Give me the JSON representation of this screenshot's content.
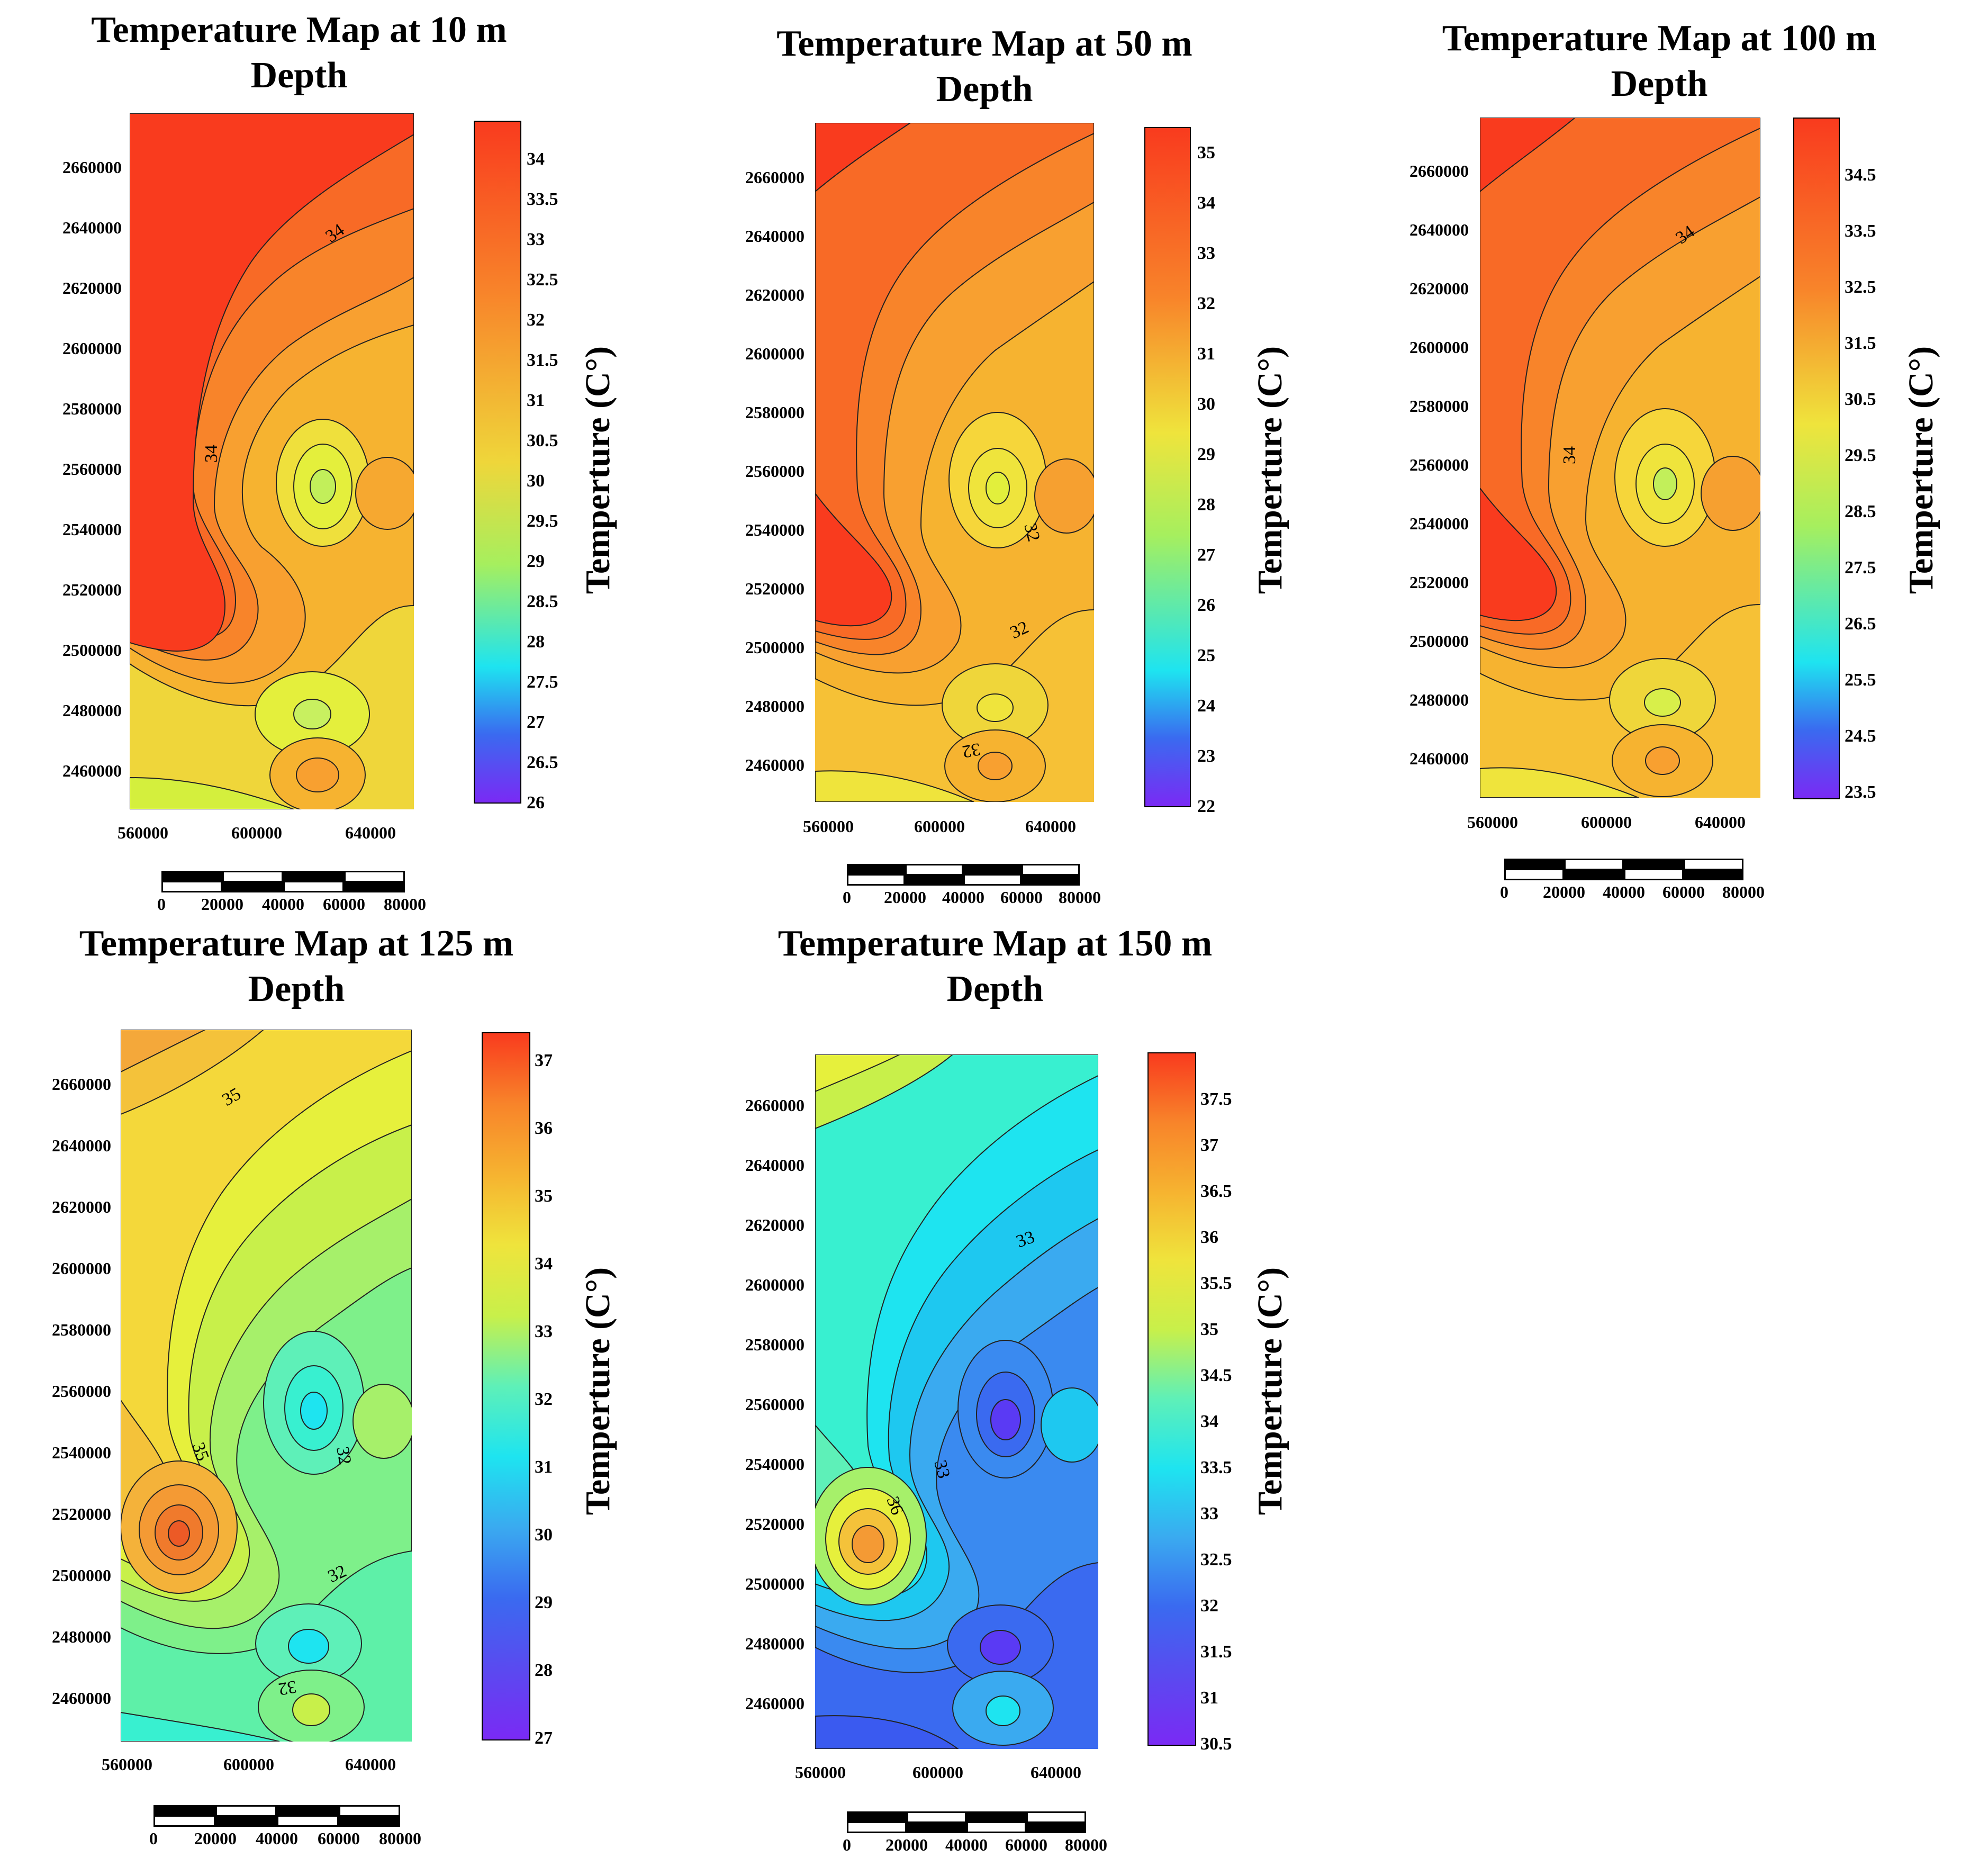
{
  "panels": [
    {
      "id": "p10",
      "title_line1": "Temperature Map at 10 m",
      "title_line2": "Depth",
      "y_ticks": [
        "2660000",
        "2640000",
        "2620000",
        "2600000",
        "2580000",
        "2560000",
        "2540000",
        "2520000",
        "2500000",
        "2480000",
        "2460000"
      ],
      "x_ticks": [
        "560000",
        "600000",
        "640000"
      ],
      "colorbar_title": "Temperture (C°)",
      "colorbar_labels": [
        "34",
        "33.5",
        "33",
        "32.5",
        "32",
        "31.5",
        "31",
        "30.5",
        "30",
        "29.5",
        "29",
        "28.5",
        "28",
        "27.5",
        "27",
        "26.5",
        "26"
      ],
      "contour_labels": [
        "34",
        "34"
      ],
      "scale_labels": [
        "0",
        "20000",
        "40000",
        "60000",
        "80000"
      ],
      "colors": {
        "hot": "#f93b1e",
        "warm": "#f8842a",
        "mid": "#f6b330",
        "cool": "#efd63a",
        "cold": "#d4ef3d"
      }
    },
    {
      "id": "p50",
      "title_line1": "Temperature Map at 50 m",
      "title_line2": "Depth",
      "y_ticks": [
        "2660000",
        "2640000",
        "2620000",
        "2600000",
        "2580000",
        "2560000",
        "2540000",
        "2520000",
        "2500000",
        "2480000",
        "2460000"
      ],
      "x_ticks": [
        "560000",
        "600000",
        "640000"
      ],
      "colorbar_title": "Temperture (C°)",
      "colorbar_labels": [
        "35",
        "34",
        "33",
        "32",
        "31",
        "30",
        "29",
        "28",
        "27",
        "26",
        "25",
        "24",
        "23",
        "22"
      ],
      "contour_labels": [
        "32",
        "32",
        "32"
      ],
      "scale_labels": [
        "0",
        "20000",
        "40000",
        "60000",
        "80000"
      ],
      "colors": {
        "hot": "#f93b1e",
        "warm": "#f8842a",
        "mid": "#f6b330",
        "cool": "#efd63a",
        "cold": "#d4ef3d"
      }
    },
    {
      "id": "p100",
      "title_line1": "Temperature Map at 100 m",
      "title_line2": "Depth",
      "y_ticks": [
        "2660000",
        "2640000",
        "2620000",
        "2600000",
        "2580000",
        "2560000",
        "2540000",
        "2520000",
        "2500000",
        "2480000",
        "2460000"
      ],
      "x_ticks": [
        "560000",
        "600000",
        "640000"
      ],
      "colorbar_title": "Temperture (C°)",
      "colorbar_labels": [
        "34.5",
        "33.5",
        "32.5",
        "31.5",
        "30.5",
        "29.5",
        "28.5",
        "27.5",
        "26.5",
        "25.5",
        "24.5",
        "23.5"
      ],
      "contour_labels": [
        "34",
        "34"
      ],
      "scale_labels": [
        "0",
        "20000",
        "40000",
        "60000",
        "80000"
      ],
      "colors": {
        "hot": "#f93b1e",
        "warm": "#f8842a",
        "mid": "#f6b330",
        "cool": "#efd63a",
        "cold": "#d4ef3d"
      }
    },
    {
      "id": "p125",
      "title_line1": "Temperature Map at 125 m",
      "title_line2": "Depth",
      "y_ticks": [
        "2660000",
        "2640000",
        "2620000",
        "2600000",
        "2580000",
        "2560000",
        "2540000",
        "2520000",
        "2500000",
        "2480000",
        "2460000"
      ],
      "x_ticks": [
        "560000",
        "600000",
        "640000"
      ],
      "colorbar_title": "Temperture (C°)",
      "colorbar_labels": [
        "37",
        "36",
        "35",
        "34",
        "33",
        "32",
        "31",
        "30",
        "29",
        "28",
        "27"
      ],
      "contour_labels": [
        "35",
        "35",
        "32",
        "32",
        "32"
      ],
      "scale_labels": [
        "0",
        "20000",
        "40000",
        "60000",
        "80000"
      ],
      "colors": {
        "hot": "#f08a2a",
        "warm": "#f4c23a",
        "mid": "#e6f03c",
        "cool": "#7ef08a",
        "cold": "#38f0d0"
      }
    },
    {
      "id": "p150",
      "title_line1": "Temperature Map at 150 m",
      "title_line2": "Depth",
      "y_ticks": [
        "2660000",
        "2640000",
        "2620000",
        "2600000",
        "2580000",
        "2560000",
        "2540000",
        "2520000",
        "2500000",
        "2480000",
        "2460000"
      ],
      "x_ticks": [
        "560000",
        "600000",
        "640000"
      ],
      "colorbar_title": "Temperture (C°)",
      "colorbar_labels": [
        "37.5",
        "37",
        "36.5",
        "36",
        "35.5",
        "35",
        "34.5",
        "34",
        "33.5",
        "33",
        "32.5",
        "32",
        "31.5",
        "31",
        "30.5"
      ],
      "contour_labels": [
        "33",
        "33",
        "36"
      ],
      "scale_labels": [
        "0",
        "20000",
        "40000",
        "60000",
        "80000"
      ],
      "colors": {
        "hot": "#f4a83a",
        "warm": "#d8f04a",
        "mid": "#5ef0b8",
        "cool": "#1ee4f0",
        "cold": "#3a8af0"
      }
    }
  ]
}
